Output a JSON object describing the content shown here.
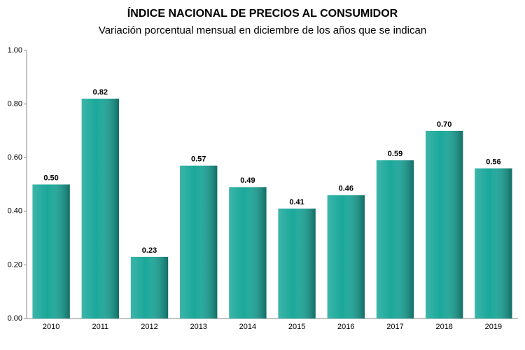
{
  "chart_data": {
    "type": "bar",
    "title": "ÍNDICE NACIONAL DE PRECIOS AL CONSUMIDOR",
    "subtitle": "Variación porcentual mensual en diciembre de los años que se indican",
    "categories": [
      "2010",
      "2011",
      "2012",
      "2013",
      "2014",
      "2015",
      "2016",
      "2017",
      "2018",
      "2019"
    ],
    "values": [
      0.5,
      0.82,
      0.23,
      0.57,
      0.49,
      0.41,
      0.46,
      0.59,
      0.7,
      0.56
    ],
    "value_labels": [
      "0.50",
      "0.82",
      "0.23",
      "0.57",
      "0.49",
      "0.41",
      "0.46",
      "0.59",
      "0.70",
      "0.56"
    ],
    "color": "#1aa89a",
    "ylim": [
      0,
      1
    ],
    "yticks": [
      {
        "value": 0,
        "label": "0.00"
      },
      {
        "value": 0.2,
        "label": "0.20"
      },
      {
        "value": 0.4,
        "label": "0.40"
      },
      {
        "value": 0.6,
        "label": "0.60"
      },
      {
        "value": 0.8,
        "label": "0.80"
      },
      {
        "value": 1,
        "label": "1.00"
      }
    ],
    "grid": false
  }
}
